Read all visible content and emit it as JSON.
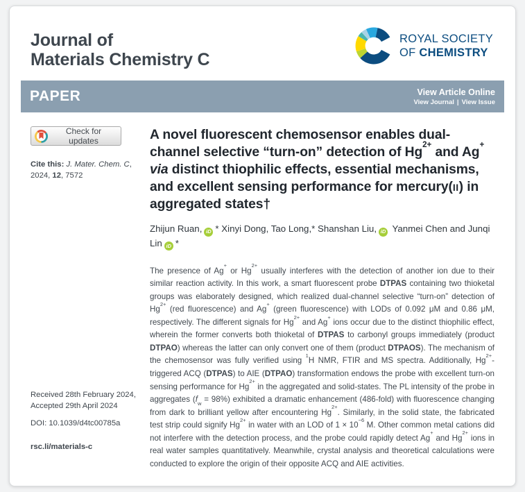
{
  "journal": {
    "title_line1": "Journal of",
    "title_line2": "Materials Chemistry C"
  },
  "publisher": {
    "line1": "ROYAL SOCIETY",
    "line2_prefix": "OF ",
    "line2_bold": "CHEMISTRY"
  },
  "banner": {
    "type": "PAPER",
    "view_article_online": "View Article Online",
    "view_journal": "View Journal",
    "separator": "|",
    "view_issue": "View Issue"
  },
  "sidebar": {
    "check_updates_label": "Check for updates",
    "cite": [
      {
        "t": "Cite this: ",
        "bold": true
      },
      {
        "t": "J. Mater. Chem. C",
        "italic": true
      },
      {
        "t": ", 2024, "
      },
      {
        "t": "12",
        "bold": true
      },
      {
        "t": ", 7572"
      }
    ],
    "received": "Received 28th February 2024,",
    "accepted": "Accepted 29th April 2024",
    "doi": "DOI: 10.1039/d4tc00785a",
    "link": "rsc.li/materials-c"
  },
  "article": {
    "title": [
      {
        "t": "A novel fluorescent chemosensor enables dual-channel selective “turn-on” detection of Hg"
      },
      {
        "t": "2+",
        "sup": true
      },
      {
        "t": " and Ag"
      },
      {
        "t": "+",
        "sup": true
      },
      {
        "t": " "
      },
      {
        "t": "via",
        "italic": true
      },
      {
        "t": " distinct thiophilic effects, essential mechanisms, and excellent sensing performance for mercury("
      },
      {
        "t": "ii",
        "smallcaps": true
      },
      {
        "t": ") in aggregated states†"
      }
    ],
    "authors": [
      {
        "t": "Zhijun Ruan,"
      },
      {
        "icon": "orcid"
      },
      {
        "t": "* Xinyi Dong, Tao Long,* Shanshan Liu,"
      },
      {
        "icon": "orcid"
      },
      {
        "t": " Yanmei Chen and Junqi Lin"
      },
      {
        "icon": "orcid"
      },
      {
        "t": "*"
      }
    ],
    "abstract": [
      {
        "t": "The presence of Ag"
      },
      {
        "t": "+",
        "sup": true
      },
      {
        "t": " or Hg"
      },
      {
        "t": "2+",
        "sup": true
      },
      {
        "t": " usually interferes with the detection of another ion due to their similar reaction activity. In this work, a smart fluorescent probe "
      },
      {
        "t": "DTPAS",
        "bold": true
      },
      {
        "t": " containing two thioketal groups was elaborately designed, which realized dual-channel selective “turn-on” detection of Hg"
      },
      {
        "t": "2+",
        "sup": true
      },
      {
        "t": " (red fluorescence) and Ag"
      },
      {
        "t": "+",
        "sup": true
      },
      {
        "t": " (green fluorescence) with LODs of 0.092 μM and 0.86 μM, respectively. The different signals for Hg"
      },
      {
        "t": "2+",
        "sup": true
      },
      {
        "t": " and Ag"
      },
      {
        "t": "+",
        "sup": true
      },
      {
        "t": " ions occur due to the distinct thiophilic effect, wherein the former converts both thioketal of "
      },
      {
        "t": "DTPAS",
        "bold": true
      },
      {
        "t": " to carbonyl groups immediately (product "
      },
      {
        "t": "DTPAO",
        "bold": true
      },
      {
        "t": ") whereas the latter can only convert one of them (product "
      },
      {
        "t": "DTPAOS",
        "bold": true
      },
      {
        "t": "). The mechanism of the chemosensor was fully verified using "
      },
      {
        "t": "1",
        "sup": true
      },
      {
        "t": "H NMR, FTIR and MS spectra. Additionally, Hg"
      },
      {
        "t": "2+",
        "sup": true
      },
      {
        "t": "-triggered ACQ ("
      },
      {
        "t": "DTPAS",
        "bold": true
      },
      {
        "t": ") to AIE ("
      },
      {
        "t": "DTPAO",
        "bold": true
      },
      {
        "t": ") transformation endows the probe with excellent turn-on sensing performance for Hg"
      },
      {
        "t": "2+",
        "sup": true
      },
      {
        "t": " in the aggregated and solid-states. The PL intensity of the probe in aggregates ("
      },
      {
        "t": "f",
        "italic": true
      },
      {
        "t": "w",
        "sub": true
      },
      {
        "t": " = 98%) exhibited a dramatic enhancement (486-fold) with fluorescence changing from dark to brilliant yellow after encountering Hg"
      },
      {
        "t": "2+",
        "sup": true
      },
      {
        "t": ". Similarly, in the solid state, the fabricated test strip could signify Hg"
      },
      {
        "t": "2+",
        "sup": true
      },
      {
        "t": " in water with an LOD of 1 × 10"
      },
      {
        "t": "−6",
        "sup": true
      },
      {
        "t": " M. Other common metal cations did not interfere with the detection process, and the probe could rapidly detect Ag"
      },
      {
        "t": "+",
        "sup": true
      },
      {
        "t": " and Hg"
      },
      {
        "t": "2+",
        "sup": true
      },
      {
        "t": " ions in real water samples quantitatively. Meanwhile, crystal analysis and theoretical calculations were conducted to explore the origin of their opposite ACQ and AIE activities."
      }
    ]
  },
  "colors": {
    "banner_bg": "#8b9fb0",
    "rsc_navy": "#0c4d80",
    "rsc_sky": "#29a8df",
    "rsc_pale_blue": "#a8d2e7",
    "rsc_teal": "#49b5b0",
    "rsc_lime": "#bdd531",
    "rsc_yellow": "#ffd900",
    "orcid_green": "#a6ce39",
    "crossmark_red": "#e0503c",
    "crossmark_teal": "#2e9fa6",
    "crossmark_yellow": "#f6c84c"
  }
}
